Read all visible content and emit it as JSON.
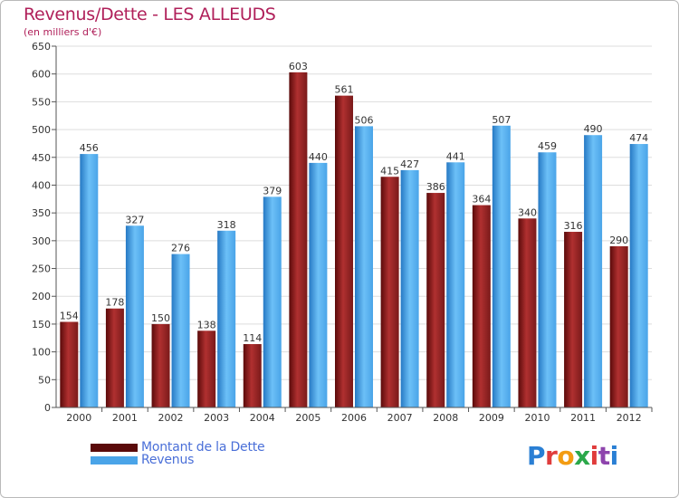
{
  "header": {
    "title": "Revenus/Dette - LES ALLEUDS",
    "subtitle": "(en milliers d'€)"
  },
  "legend": {
    "debt_label": "Montant de la Dette",
    "revenue_label": "Revenus"
  },
  "logo": {
    "text": "Proxiti",
    "letters": [
      "P",
      "r",
      "o",
      "x",
      "i",
      "t",
      "i"
    ],
    "letter_colors": [
      "#2a7fd4",
      "#e03c3c",
      "#f39c12",
      "#2ba84a",
      "#e03c3c",
      "#8e44ad",
      "#2a7fd4"
    ]
  },
  "colors": {
    "debt": "#7a1a1a",
    "debt_light": "#b03030",
    "debt_dark": "#5a0a0a",
    "revenue": "#4aa4e8",
    "revenue_light": "#6cc0f7",
    "revenue_dark": "#2679c4",
    "axis_text": "#333333",
    "grid": "#dddddd"
  },
  "chart_data": {
    "type": "bar",
    "title": "Revenus/Dette - LES ALLEUDS",
    "ylabel": "(en milliers d'€)",
    "xlabel": "",
    "categories": [
      "2000",
      "2001",
      "2002",
      "2003",
      "2004",
      "2005",
      "2006",
      "2007",
      "2008",
      "2009",
      "2010",
      "2011",
      "2012"
    ],
    "series": [
      {
        "name": "Montant de la Dette",
        "values": [
          154,
          178,
          150,
          138,
          114,
          603,
          561,
          415,
          386,
          364,
          340,
          316,
          290
        ]
      },
      {
        "name": "Revenus",
        "values": [
          456,
          327,
          276,
          318,
          379,
          440,
          506,
          427,
          441,
          507,
          459,
          490,
          474
        ]
      }
    ],
    "ylim": [
      0,
      650
    ],
    "yticks": [
      0,
      50,
      100,
      150,
      200,
      250,
      300,
      350,
      400,
      450,
      500,
      550,
      600,
      650
    ],
    "grid": true,
    "legend_position": "bottom-left"
  }
}
